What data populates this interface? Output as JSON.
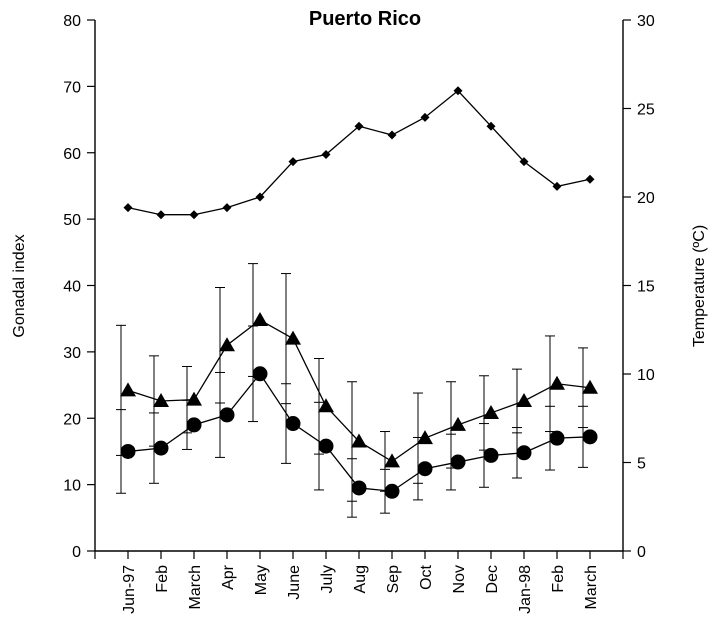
{
  "chart_data": {
    "type": "line",
    "title": "Puerto Rico",
    "ylabel": "Gonadal index",
    "y2label": "Temperature (ºC)",
    "ylim": [
      0,
      80
    ],
    "y2lim": [
      0,
      30
    ],
    "yticks": [
      "0",
      "10",
      "20",
      "30",
      "40",
      "50",
      "60",
      "70",
      "80"
    ],
    "y2ticks": [
      "0",
      "5",
      "10",
      "15",
      "20",
      "25",
      "30"
    ],
    "categories": [
      "Jun-97",
      "Feb",
      "March",
      "Apr",
      "May",
      "June",
      "July",
      "Aug",
      "Sep",
      "Oct",
      "Nov",
      "Dec",
      "Jan-98",
      "Feb",
      "March"
    ],
    "x": [
      0,
      1,
      2,
      3,
      4,
      5,
      6,
      7,
      8,
      9,
      10,
      11,
      12,
      13,
      14,
      15,
      16
    ],
    "series": [
      {
        "marker": "diamond",
        "axis": "right",
        "x": [
          1,
          2,
          3,
          4,
          5,
          6,
          7,
          8,
          9,
          10,
          11,
          12,
          13,
          14,
          15
        ],
        "values": [
          19.4,
          19.0,
          19.0,
          19.4,
          20.0,
          22.0,
          22.4,
          24.0,
          23.5,
          24.5,
          26.0,
          24.0,
          22.0,
          20.6,
          21.0
        ]
      },
      {
        "marker": "triangle",
        "axis": "left",
        "x": [
          1,
          2,
          3,
          4,
          5,
          6,
          7,
          8,
          9,
          10,
          11,
          12,
          13,
          14,
          15
        ],
        "values": [
          24.2,
          22.6,
          22.8,
          31.0,
          34.8,
          32.0,
          21.8,
          16.5,
          13.5,
          17.0,
          19.0,
          20.8,
          22.6,
          25.2,
          24.6
        ],
        "error": [
          9.8,
          6.8,
          5.0,
          8.7,
          8.5,
          9.8,
          7.2,
          9.0,
          4.5,
          6.8,
          6.5,
          5.6,
          4.8,
          7.2,
          6.0
        ]
      },
      {
        "marker": "circle",
        "axis": "left",
        "x": [
          1,
          2,
          3,
          4,
          5,
          6,
          7,
          8,
          9,
          10,
          11,
          12,
          13,
          14,
          15
        ],
        "values": [
          15.0,
          15.5,
          19.0,
          20.5,
          26.7,
          19.2,
          15.8,
          9.5,
          9.0,
          12.4,
          13.4,
          14.4,
          14.8,
          17.0,
          17.2
        ],
        "error": [
          6.3,
          5.3,
          3.7,
          6.4,
          7.2,
          6.0,
          6.6,
          4.4,
          3.3,
          4.7,
          4.2,
          4.8,
          3.8,
          4.8,
          4.6
        ]
      }
    ]
  }
}
